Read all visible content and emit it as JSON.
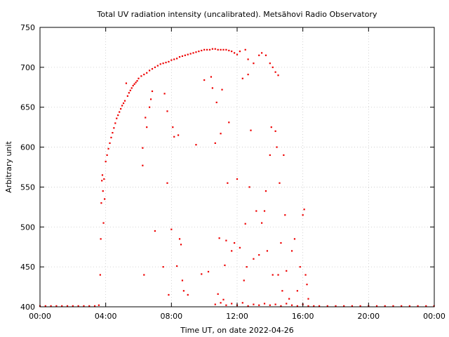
{
  "chart_data": {
    "type": "scatter",
    "title": "Total UV radiation intensity (uncalibrated). Metsähovi Radio Observatory",
    "xlabel": "Time UT, on date 2022-04-26",
    "ylabel": "Arbitrary unit",
    "xlim": [
      "00:00",
      "24:00"
    ],
    "ylim": [
      400,
      750
    ],
    "x_ticks": [
      "00:00",
      "04:00",
      "08:00",
      "12:00",
      "16:00",
      "20:00",
      "00:00"
    ],
    "y_ticks": [
      400,
      450,
      500,
      550,
      600,
      650,
      700,
      750
    ],
    "grid": true,
    "marker_color": "#ee0000",
    "series": [
      {
        "points": [
          [
            "00:00",
            401
          ],
          [
            "00:20",
            401
          ],
          [
            "00:40",
            401
          ],
          [
            "01:00",
            401
          ],
          [
            "01:20",
            401
          ],
          [
            "01:40",
            401
          ],
          [
            "02:00",
            401
          ],
          [
            "02:20",
            401
          ],
          [
            "02:40",
            401
          ],
          [
            "03:00",
            401
          ],
          [
            "03:20",
            401
          ],
          [
            "03:35",
            402
          ],
          [
            "03:40",
            440
          ],
          [
            "03:42",
            485
          ],
          [
            "03:44",
            530
          ],
          [
            "03:46",
            558
          ],
          [
            "03:48",
            565
          ],
          [
            "03:50",
            545
          ],
          [
            "03:52",
            505
          ],
          [
            "03:54",
            560
          ],
          [
            "03:56",
            535
          ],
          [
            "04:00",
            582
          ],
          [
            "04:05",
            590
          ],
          [
            "04:10",
            598
          ],
          [
            "04:15",
            605
          ],
          [
            "04:20",
            612
          ],
          [
            "04:25",
            618
          ],
          [
            "04:30",
            624
          ],
          [
            "04:35",
            630
          ],
          [
            "04:40",
            636
          ],
          [
            "04:45",
            640
          ],
          [
            "04:50",
            644
          ],
          [
            "04:55",
            648
          ],
          [
            "05:00",
            652
          ],
          [
            "05:05",
            655
          ],
          [
            "05:10",
            658
          ],
          [
            "05:15",
            680
          ],
          [
            "05:20",
            664
          ],
          [
            "05:25",
            668
          ],
          [
            "05:30",
            671
          ],
          [
            "05:35",
            674
          ],
          [
            "05:40",
            677
          ],
          [
            "05:45",
            679
          ],
          [
            "05:50",
            681
          ],
          [
            "05:55",
            683
          ],
          [
            "06:00",
            686
          ],
          [
            "06:10",
            689
          ],
          [
            "06:20",
            691
          ],
          [
            "06:30",
            693
          ],
          [
            "06:40",
            696
          ],
          [
            "06:50",
            698
          ],
          [
            "07:00",
            700
          ],
          [
            "07:10",
            702
          ],
          [
            "07:20",
            704
          ],
          [
            "07:30",
            705
          ],
          [
            "07:40",
            706
          ],
          [
            "07:50",
            707
          ],
          [
            "08:00",
            709
          ],
          [
            "08:10",
            710
          ],
          [
            "08:20",
            711
          ],
          [
            "08:30",
            713
          ],
          [
            "08:40",
            714
          ],
          [
            "08:50",
            715
          ],
          [
            "09:00",
            716
          ],
          [
            "09:10",
            717
          ],
          [
            "09:20",
            718
          ],
          [
            "09:30",
            719
          ],
          [
            "09:40",
            720
          ],
          [
            "09:50",
            721
          ],
          [
            "10:00",
            722
          ],
          [
            "10:10",
            722
          ],
          [
            "10:20",
            722
          ],
          [
            "10:30",
            723
          ],
          [
            "10:40",
            723
          ],
          [
            "10:50",
            722
          ],
          [
            "11:00",
            722
          ],
          [
            "11:10",
            722
          ],
          [
            "11:20",
            722
          ],
          [
            "11:30",
            721
          ],
          [
            "11:40",
            720
          ],
          [
            "11:50",
            718
          ],
          [
            "12:00",
            716
          ],
          [
            "12:10",
            720
          ],
          [
            "12:30",
            722
          ],
          [
            "12:40",
            710
          ],
          [
            "13:00",
            705
          ],
          [
            "13:20",
            715
          ],
          [
            "13:30",
            718
          ],
          [
            "13:45",
            715
          ],
          [
            "14:00",
            705
          ],
          [
            "14:10",
            700
          ],
          [
            "14:20",
            694
          ],
          [
            "14:30",
            690
          ],
          [
            "06:15",
            599
          ],
          [
            "06:15",
            577
          ],
          [
            "06:20",
            440
          ],
          [
            "06:25",
            637
          ],
          [
            "06:30",
            625
          ],
          [
            "06:40",
            650
          ],
          [
            "06:45",
            660
          ],
          [
            "06:50",
            670
          ],
          [
            "07:00",
            495
          ],
          [
            "07:30",
            450
          ],
          [
            "07:35",
            667
          ],
          [
            "07:45",
            555
          ],
          [
            "07:45",
            645
          ],
          [
            "07:50",
            415
          ],
          [
            "08:00",
            497
          ],
          [
            "08:05",
            625
          ],
          [
            "08:10",
            613
          ],
          [
            "08:20",
            451
          ],
          [
            "08:25",
            615
          ],
          [
            "08:30",
            485
          ],
          [
            "08:35",
            478
          ],
          [
            "08:40",
            433
          ],
          [
            "08:45",
            420
          ],
          [
            "09:00",
            415
          ],
          [
            "09:30",
            603
          ],
          [
            "09:50",
            441
          ],
          [
            "10:00",
            684
          ],
          [
            "10:15",
            444
          ],
          [
            "10:25",
            688
          ],
          [
            "10:30",
            674
          ],
          [
            "10:40",
            605
          ],
          [
            "10:45",
            656
          ],
          [
            "10:50",
            416
          ],
          [
            "10:55",
            486
          ],
          [
            "11:00",
            617
          ],
          [
            "11:05",
            672
          ],
          [
            "11:10",
            409
          ],
          [
            "11:15",
            452
          ],
          [
            "11:20",
            483
          ],
          [
            "11:25",
            555
          ],
          [
            "11:30",
            631
          ],
          [
            "11:40",
            470
          ],
          [
            "11:50",
            480
          ],
          [
            "12:00",
            560
          ],
          [
            "12:10",
            474
          ],
          [
            "12:20",
            686
          ],
          [
            "12:25",
            433
          ],
          [
            "12:30",
            504
          ],
          [
            "12:35",
            450
          ],
          [
            "12:40",
            691
          ],
          [
            "12:45",
            550
          ],
          [
            "12:50",
            621
          ],
          [
            "13:00",
            460
          ],
          [
            "13:10",
            520
          ],
          [
            "13:20",
            465
          ],
          [
            "13:30",
            505
          ],
          [
            "13:40",
            520
          ],
          [
            "13:45",
            545
          ],
          [
            "13:50",
            470
          ],
          [
            "14:00",
            590
          ],
          [
            "14:05",
            625
          ],
          [
            "14:10",
            440
          ],
          [
            "14:20",
            620
          ],
          [
            "14:25",
            600
          ],
          [
            "14:30",
            440
          ],
          [
            "14:35",
            555
          ],
          [
            "14:40",
            480
          ],
          [
            "14:45",
            420
          ],
          [
            "14:50",
            590
          ],
          [
            "14:55",
            515
          ],
          [
            "15:00",
            445
          ],
          [
            "15:10",
            410
          ],
          [
            "15:20",
            470
          ],
          [
            "15:30",
            485
          ],
          [
            "15:40",
            420
          ],
          [
            "15:50",
            450
          ],
          [
            "16:00",
            515
          ],
          [
            "16:05",
            522
          ],
          [
            "16:10",
            440
          ],
          [
            "16:15",
            428
          ],
          [
            "16:20",
            410
          ],
          [
            "10:40",
            403
          ],
          [
            "11:00",
            405
          ],
          [
            "11:20",
            402
          ],
          [
            "11:40",
            404
          ],
          [
            "12:00",
            402
          ],
          [
            "12:20",
            405
          ],
          [
            "12:40",
            401
          ],
          [
            "13:00",
            403
          ],
          [
            "13:20",
            402
          ],
          [
            "13:40",
            404
          ],
          [
            "14:00",
            402
          ],
          [
            "14:20",
            403
          ],
          [
            "14:40",
            401
          ],
          [
            "15:00",
            404
          ],
          [
            "15:20",
            402
          ],
          [
            "15:40",
            401
          ],
          [
            "16:00",
            403
          ],
          [
            "16:20",
            401
          ],
          [
            "16:40",
            401
          ],
          [
            "17:00",
            401
          ],
          [
            "17:30",
            401
          ],
          [
            "18:00",
            401
          ],
          [
            "18:30",
            401
          ],
          [
            "19:00",
            401
          ],
          [
            "19:30",
            401
          ],
          [
            "20:00",
            401
          ],
          [
            "20:30",
            401
          ],
          [
            "21:00",
            401
          ],
          [
            "21:30",
            401
          ],
          [
            "22:00",
            401
          ],
          [
            "22:30",
            401
          ],
          [
            "23:00",
            401
          ],
          [
            "23:30",
            401
          ],
          [
            "23:59",
            401
          ]
        ]
      }
    ]
  }
}
